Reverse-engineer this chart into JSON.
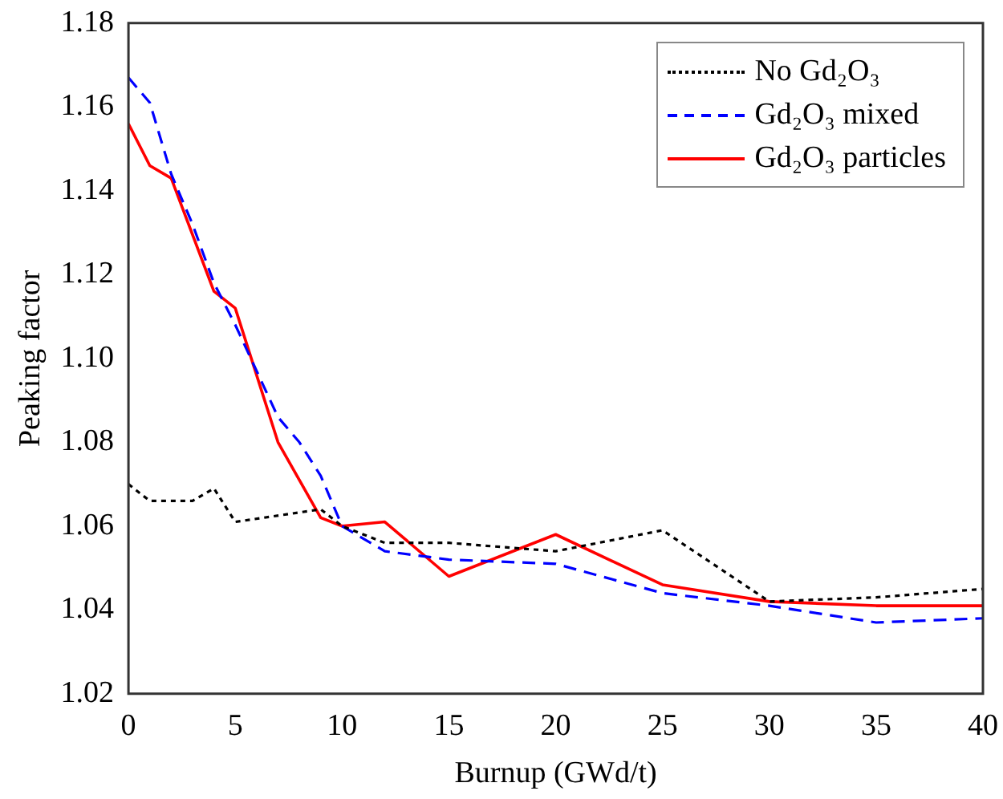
{
  "chart_data": {
    "type": "line",
    "xlabel": "Burnup (GWd/t)",
    "ylabel": "Peaking factor",
    "xlim": [
      0,
      40
    ],
    "xticks": [
      0,
      5,
      10,
      15,
      20,
      25,
      30,
      35,
      40
    ],
    "ylim": [
      1.02,
      1.18
    ],
    "yticks": [
      1.02,
      1.04,
      1.06,
      1.08,
      {
        "value": 1.1,
        "label": "1.10"
      },
      1.12,
      1.14,
      1.16,
      1.18
    ],
    "grid": false,
    "legend": "top right",
    "marker": "none",
    "series": [
      {
        "name": "No Gd₂O₃",
        "color": "#000000",
        "line_style": "dotted",
        "x": [
          0,
          1,
          3,
          4,
          5,
          9,
          10,
          12,
          15,
          20,
          25,
          30,
          35,
          40
        ],
        "values": [
          1.07,
          1.066,
          1.066,
          1.069,
          1.061,
          1.064,
          1.06,
          1.056,
          1.056,
          1.054,
          1.059,
          1.042,
          1.043,
          1.045
        ]
      },
      {
        "name": "Gd₂O₃ mixed",
        "color": "#0000ff",
        "line_style": "dashed",
        "x": [
          0,
          1,
          2,
          3,
          4,
          5,
          6,
          7,
          8,
          9,
          10,
          12,
          15,
          20,
          25,
          30,
          35,
          40
        ],
        "values": [
          1.167,
          1.161,
          1.144,
          1.132,
          1.118,
          1.108,
          1.097,
          1.086,
          1.08,
          1.072,
          1.06,
          1.054,
          1.052,
          1.051,
          1.044,
          1.041,
          1.037,
          1.038
        ]
      },
      {
        "name": "Gd₂O₃ particles",
        "color": "#ff0000",
        "line_style": "solid",
        "x": [
          0,
          1,
          2,
          4,
          5,
          7,
          9,
          10,
          12,
          15,
          20,
          25,
          30,
          35,
          40
        ],
        "values": [
          1.156,
          1.146,
          1.143,
          1.116,
          1.112,
          1.08,
          1.062,
          1.06,
          1.061,
          1.048,
          1.058,
          1.046,
          1.042,
          1.041,
          1.041
        ]
      }
    ]
  }
}
